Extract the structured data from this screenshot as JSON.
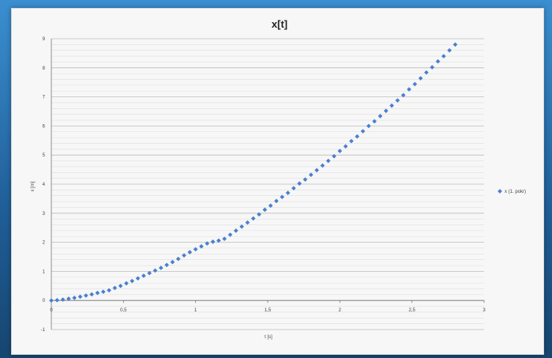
{
  "colors": {
    "frame": "#2a6fa8",
    "plot_background": "#f7f7f7",
    "marker": "#4a7fd0",
    "gridline_major": "#bdbdbd",
    "gridline_minor": "#e0e0e0"
  },
  "chart_data": {
    "type": "scatter",
    "title": "x[t]",
    "xlabel": "t [s]",
    "ylabel": "x [m]",
    "xlim": [
      0,
      3
    ],
    "ylim": [
      -1,
      9
    ],
    "x_ticks": [
      {
        "value": 0,
        "label": "0"
      },
      {
        "value": 0.5,
        "label": "0,5"
      },
      {
        "value": 1,
        "label": "1"
      },
      {
        "value": 1.5,
        "label": "1,5"
      },
      {
        "value": 2,
        "label": "2"
      },
      {
        "value": 2.5,
        "label": "2,5"
      },
      {
        "value": 3,
        "label": "3"
      }
    ],
    "y_ticks": [
      {
        "value": -1,
        "label": "-1"
      },
      {
        "value": 0,
        "label": "0"
      },
      {
        "value": 1,
        "label": "1"
      },
      {
        "value": 2,
        "label": "2"
      },
      {
        "value": 3,
        "label": "3"
      },
      {
        "value": 4,
        "label": "4"
      },
      {
        "value": 5,
        "label": "5"
      },
      {
        "value": 6,
        "label": "6"
      },
      {
        "value": 7,
        "label": "7"
      },
      {
        "value": 8,
        "label": "8"
      },
      {
        "value": 9,
        "label": "9"
      }
    ],
    "minor_y_step": 0.2,
    "grid": true,
    "legend": {
      "position": "right",
      "entries": [
        "x (1. pokr)"
      ]
    },
    "series": [
      {
        "name": "x (1. pokr)",
        "x": [
          0,
          0.04,
          0.08,
          0.12,
          0.16,
          0.2,
          0.24,
          0.28,
          0.32,
          0.36,
          0.4,
          0.44,
          0.48,
          0.52,
          0.56,
          0.6,
          0.64,
          0.68,
          0.72,
          0.76,
          0.8,
          0.84,
          0.88,
          0.92,
          0.96,
          1.0,
          1.04,
          1.08,
          1.12,
          1.16,
          1.2,
          1.24,
          1.28,
          1.32,
          1.36,
          1.4,
          1.44,
          1.48,
          1.52,
          1.56,
          1.6,
          1.64,
          1.68,
          1.72,
          1.76,
          1.8,
          1.84,
          1.88,
          1.92,
          1.96,
          2.0,
          2.04,
          2.08,
          2.12,
          2.16,
          2.2,
          2.24,
          2.28,
          2.32,
          2.36,
          2.4,
          2.44,
          2.48,
          2.52,
          2.56,
          2.6,
          2.64,
          2.68,
          2.72,
          2.76,
          2.8
        ],
        "y": [
          0,
          0.01,
          0.03,
          0.06,
          0.09,
          0.13,
          0.17,
          0.21,
          0.26,
          0.3,
          0.35,
          0.43,
          0.5,
          0.59,
          0.67,
          0.76,
          0.85,
          0.94,
          1.03,
          1.12,
          1.22,
          1.32,
          1.43,
          1.55,
          1.66,
          1.76,
          1.86,
          1.96,
          2.02,
          2.06,
          2.12,
          2.26,
          2.4,
          2.54,
          2.68,
          2.82,
          2.96,
          3.12,
          3.26,
          3.42,
          3.56,
          3.7,
          3.86,
          4.02,
          4.16,
          4.32,
          4.48,
          4.64,
          4.8,
          4.96,
          5.14,
          5.3,
          5.48,
          5.64,
          5.82,
          6.0,
          6.16,
          6.34,
          6.52,
          6.7,
          6.88,
          7.06,
          7.26,
          7.44,
          7.64,
          7.84,
          8.02,
          8.22,
          8.4,
          8.6,
          8.8
        ]
      }
    ]
  }
}
